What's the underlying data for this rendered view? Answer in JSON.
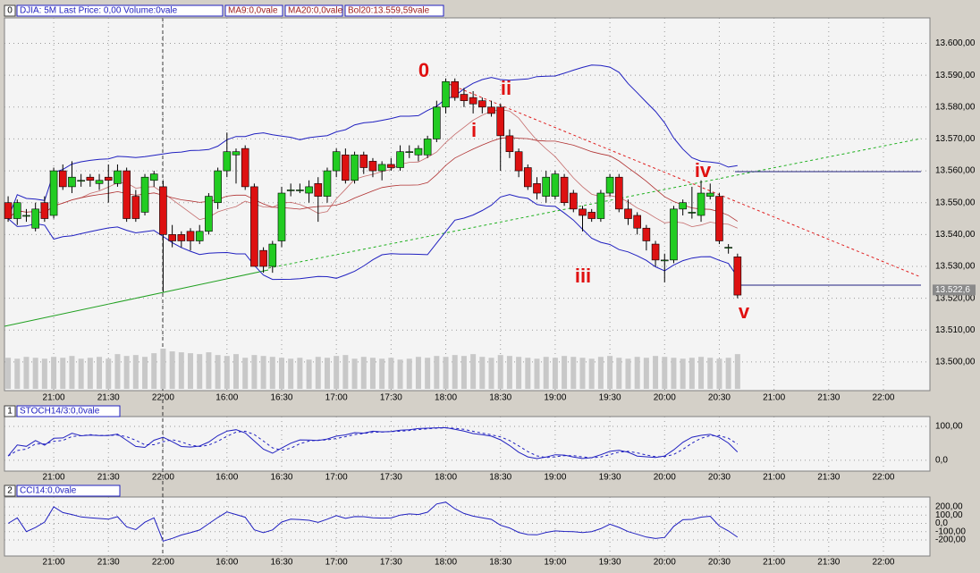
{
  "chart_data": [
    {
      "type": "candlestick",
      "panel": "0",
      "title": "DJIA: 5M Last Price: 0,00 Volume:0vale",
      "indicators": [
        {
          "label": "MA9:0,0vale",
          "color": "#a02020"
        },
        {
          "label": "MA20:0,0vale",
          "color": "#a02020"
        },
        {
          "label": "Bol20:13.559,59vale",
          "color": "#a02020"
        }
      ],
      "up_color": "#22cc22",
      "down_color": "#dd1111",
      "band_color": "#2020c0",
      "ma_color": "#b03030",
      "volume_color": "#c8c8c8",
      "open": [
        13550,
        13545,
        13546,
        13542,
        13550,
        13546,
        13560,
        13555,
        13557,
        13558,
        13556,
        13558,
        13556,
        13560,
        13552,
        13547,
        13557,
        13555,
        13540,
        13540,
        13541,
        13538,
        13541,
        13550,
        13560,
        13565,
        13567,
        13555,
        13535,
        13530,
        13538,
        13554,
        13554,
        13553,
        13556,
        13552,
        13560,
        13565,
        13557,
        13565,
        13563,
        13560,
        13562,
        13561,
        13566,
        13565,
        13565,
        13570,
        13580,
        13588,
        13584,
        13583,
        13582,
        13580,
        13580,
        13571,
        13566,
        13561,
        13556,
        13552,
        13552,
        13558,
        13553,
        13548,
        13547,
        13545,
        13553,
        13558,
        13548,
        13546,
        13542,
        13537,
        13532,
        13532,
        13548,
        13547,
        13546,
        13552,
        13552,
        13536,
        13533
      ],
      "high": [
        13552,
        13551,
        13548,
        13550,
        13552,
        13561,
        13562,
        13563,
        13559,
        13559,
        13559,
        13562,
        13562,
        13561,
        13554,
        13559,
        13560,
        13557,
        13543,
        13541,
        13542,
        13543,
        13553,
        13561,
        13572,
        13567,
        13568,
        13556,
        13536,
        13538,
        13555,
        13556,
        13556,
        13557,
        13558,
        13561,
        13567,
        13567,
        13566,
        13566,
        13564,
        13563,
        13564,
        13568,
        13568,
        13568,
        13571,
        13582,
        13589,
        13589,
        13586,
        13585,
        13583,
        13582,
        13581,
        13573,
        13567,
        13562,
        13558,
        13560,
        13560,
        13559,
        13554,
        13549,
        13548,
        13554,
        13559,
        13559,
        13551,
        13547,
        13543,
        13538,
        13534,
        13549,
        13551,
        13555,
        13557,
        13556,
        13553,
        13537,
        13534
      ],
      "low": [
        13544,
        13543,
        13544,
        13541,
        13544,
        13545,
        13554,
        13553,
        13555,
        13555,
        13554,
        13550,
        13555,
        13544,
        13544,
        13546,
        13555,
        13522,
        13536,
        13536,
        13535,
        13537,
        13540,
        13548,
        13558,
        13556,
        13554,
        13530,
        13528,
        13528,
        13536,
        13552,
        13553,
        13550,
        13544,
        13550,
        13558,
        13556,
        13556,
        13559,
        13558,
        13557,
        13560,
        13560,
        13564,
        13563,
        13564,
        13569,
        13578,
        13582,
        13580,
        13578,
        13578,
        13577,
        13560,
        13564,
        13558,
        13554,
        13551,
        13550,
        13551,
        13549,
        13547,
        13541,
        13544,
        13544,
        13552,
        13547,
        13543,
        13540,
        13535,
        13530,
        13525,
        13531,
        13546,
        13545,
        13544,
        13551,
        13537,
        13534,
        13520
      ],
      "close": [
        13545,
        13550,
        13546,
        13548,
        13545,
        13560,
        13555,
        13558,
        13557,
        13557,
        13557,
        13557,
        13560,
        13545,
        13545,
        13558,
        13559,
        13540,
        13538,
        13538,
        13538,
        13541,
        13552,
        13560,
        13566,
        13566,
        13555,
        13530,
        13530,
        13537,
        13553,
        13554,
        13554,
        13555,
        13552,
        13560,
        13566,
        13557,
        13565,
        13561,
        13560,
        13562,
        13561,
        13566,
        13566,
        13567,
        13570,
        13580,
        13588,
        13583,
        13582,
        13581,
        13580,
        13578,
        13571,
        13566,
        13560,
        13555,
        13553,
        13558,
        13559,
        13550,
        13548,
        13546,
        13545,
        13553,
        13558,
        13548,
        13545,
        13542,
        13538,
        13532,
        13532,
        13548,
        13550,
        13547,
        13553,
        13553,
        13538,
        13536,
        13521
      ],
      "volume": [
        34,
        33,
        35,
        34,
        33,
        35,
        34,
        36,
        33,
        34,
        35,
        33,
        38,
        36,
        37,
        35,
        39,
        44,
        41,
        40,
        39,
        38,
        40,
        37,
        36,
        38,
        34,
        37,
        36,
        35,
        34,
        33,
        34,
        32,
        35,
        34,
        36,
        37,
        33,
        35,
        34,
        33,
        34,
        32,
        33,
        35,
        34,
        36,
        35,
        37,
        36,
        38,
        35,
        34,
        37,
        36,
        35,
        34,
        33,
        35,
        34,
        36,
        35,
        34,
        33,
        35,
        36,
        34,
        33,
        35,
        34,
        36,
        35,
        34,
        33,
        34,
        35,
        34,
        33,
        34,
        38
      ],
      "xlim": [
        -0.4,
        101.1
      ],
      "ylim": [
        13491,
        13608
      ],
      "xticks": [
        {
          "value": 5,
          "label": "21:00"
        },
        {
          "value": 11,
          "label": "21:30"
        },
        {
          "value": 17,
          "label": "22:00"
        },
        {
          "value": 24,
          "label": "16:00"
        },
        {
          "value": 30,
          "label": "16:30"
        },
        {
          "value": 36,
          "label": "17:00"
        },
        {
          "value": 42,
          "label": "17:30"
        },
        {
          "value": 48,
          "label": "18:00"
        },
        {
          "value": 54,
          "label": "18:30"
        },
        {
          "value": 60,
          "label": "19:00"
        },
        {
          "value": 66,
          "label": "19:30"
        },
        {
          "value": 72,
          "label": "20:00"
        },
        {
          "value": 78,
          "label": "20:30"
        },
        {
          "value": 84,
          "label": "21:00"
        },
        {
          "value": 90,
          "label": "21:30"
        },
        {
          "value": 96,
          "label": "22:00"
        }
      ],
      "yticks": [
        {
          "value": 13500,
          "label": "13.500,00"
        },
        {
          "value": 13510,
          "label": "13.510,00"
        },
        {
          "value": 13520,
          "label": "13.520,00"
        },
        {
          "value": 13530,
          "label": "13.530,00"
        },
        {
          "value": 13540,
          "label": "13.540,00"
        },
        {
          "value": 13550,
          "label": "13.550,00"
        },
        {
          "value": 13560,
          "label": "13.560,00"
        },
        {
          "value": 13570,
          "label": "13.570,00"
        },
        {
          "value": 13580,
          "label": "13.580,00"
        },
        {
          "value": 13590,
          "label": "13.590,00"
        },
        {
          "value": 13600,
          "label": "13.600,00"
        }
      ],
      "last_price": {
        "value": 13522.6,
        "label": "13.522,6"
      },
      "annotations": [
        "0",
        "i",
        "ii",
        "iii",
        "iv",
        "v"
      ]
    },
    {
      "type": "stochastic",
      "panel": "1",
      "title": "STOCH14/3:0,0vale",
      "color": "#2020c0",
      "ylim": [
        -32,
        129
      ],
      "yticks": [
        {
          "value": 100,
          "label": "100,00"
        },
        {
          "value": 0,
          "label": "0,0"
        }
      ]
    },
    {
      "type": "cci",
      "panel": "2",
      "title": "CCI14:0,0vale",
      "color": "#2020c0",
      "ylim": [
        -395,
        319
      ],
      "yticks": [
        {
          "value": 200,
          "label": "200,00"
        },
        {
          "value": 100,
          "label": "100,00"
        },
        {
          "value": 0,
          "label": "0,0"
        },
        {
          "value": -100,
          "label": "-100,00"
        },
        {
          "value": -200,
          "label": "-200,00"
        }
      ]
    }
  ]
}
